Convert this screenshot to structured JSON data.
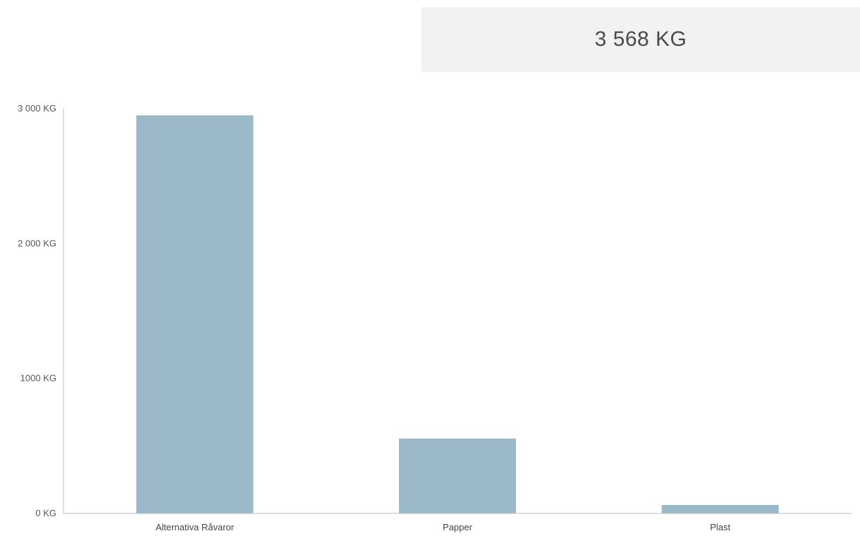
{
  "summary": {
    "total_label": "3 568 KG"
  },
  "colors": {
    "bar": "#9cb9ca",
    "axis": "#bdbdbd",
    "summary_bg": "#f2f2f2"
  },
  "chart_data": {
    "type": "bar",
    "title": "",
    "xlabel": "",
    "ylabel": "",
    "categories": [
      "Alternativa Råvaror",
      "Papper",
      "Plast"
    ],
    "values": [
      2950,
      555,
      63
    ],
    "unit": "KG",
    "ylim": [
      0,
      3000
    ],
    "yticks": [
      {
        "value": 0,
        "label": "0 KG"
      },
      {
        "value": 1000,
        "label": "1000 KG"
      },
      {
        "value": 2000,
        "label": "2 000 KG"
      },
      {
        "value": 3000,
        "label": "3 000 KG"
      }
    ],
    "grid": false,
    "legend": "none"
  }
}
